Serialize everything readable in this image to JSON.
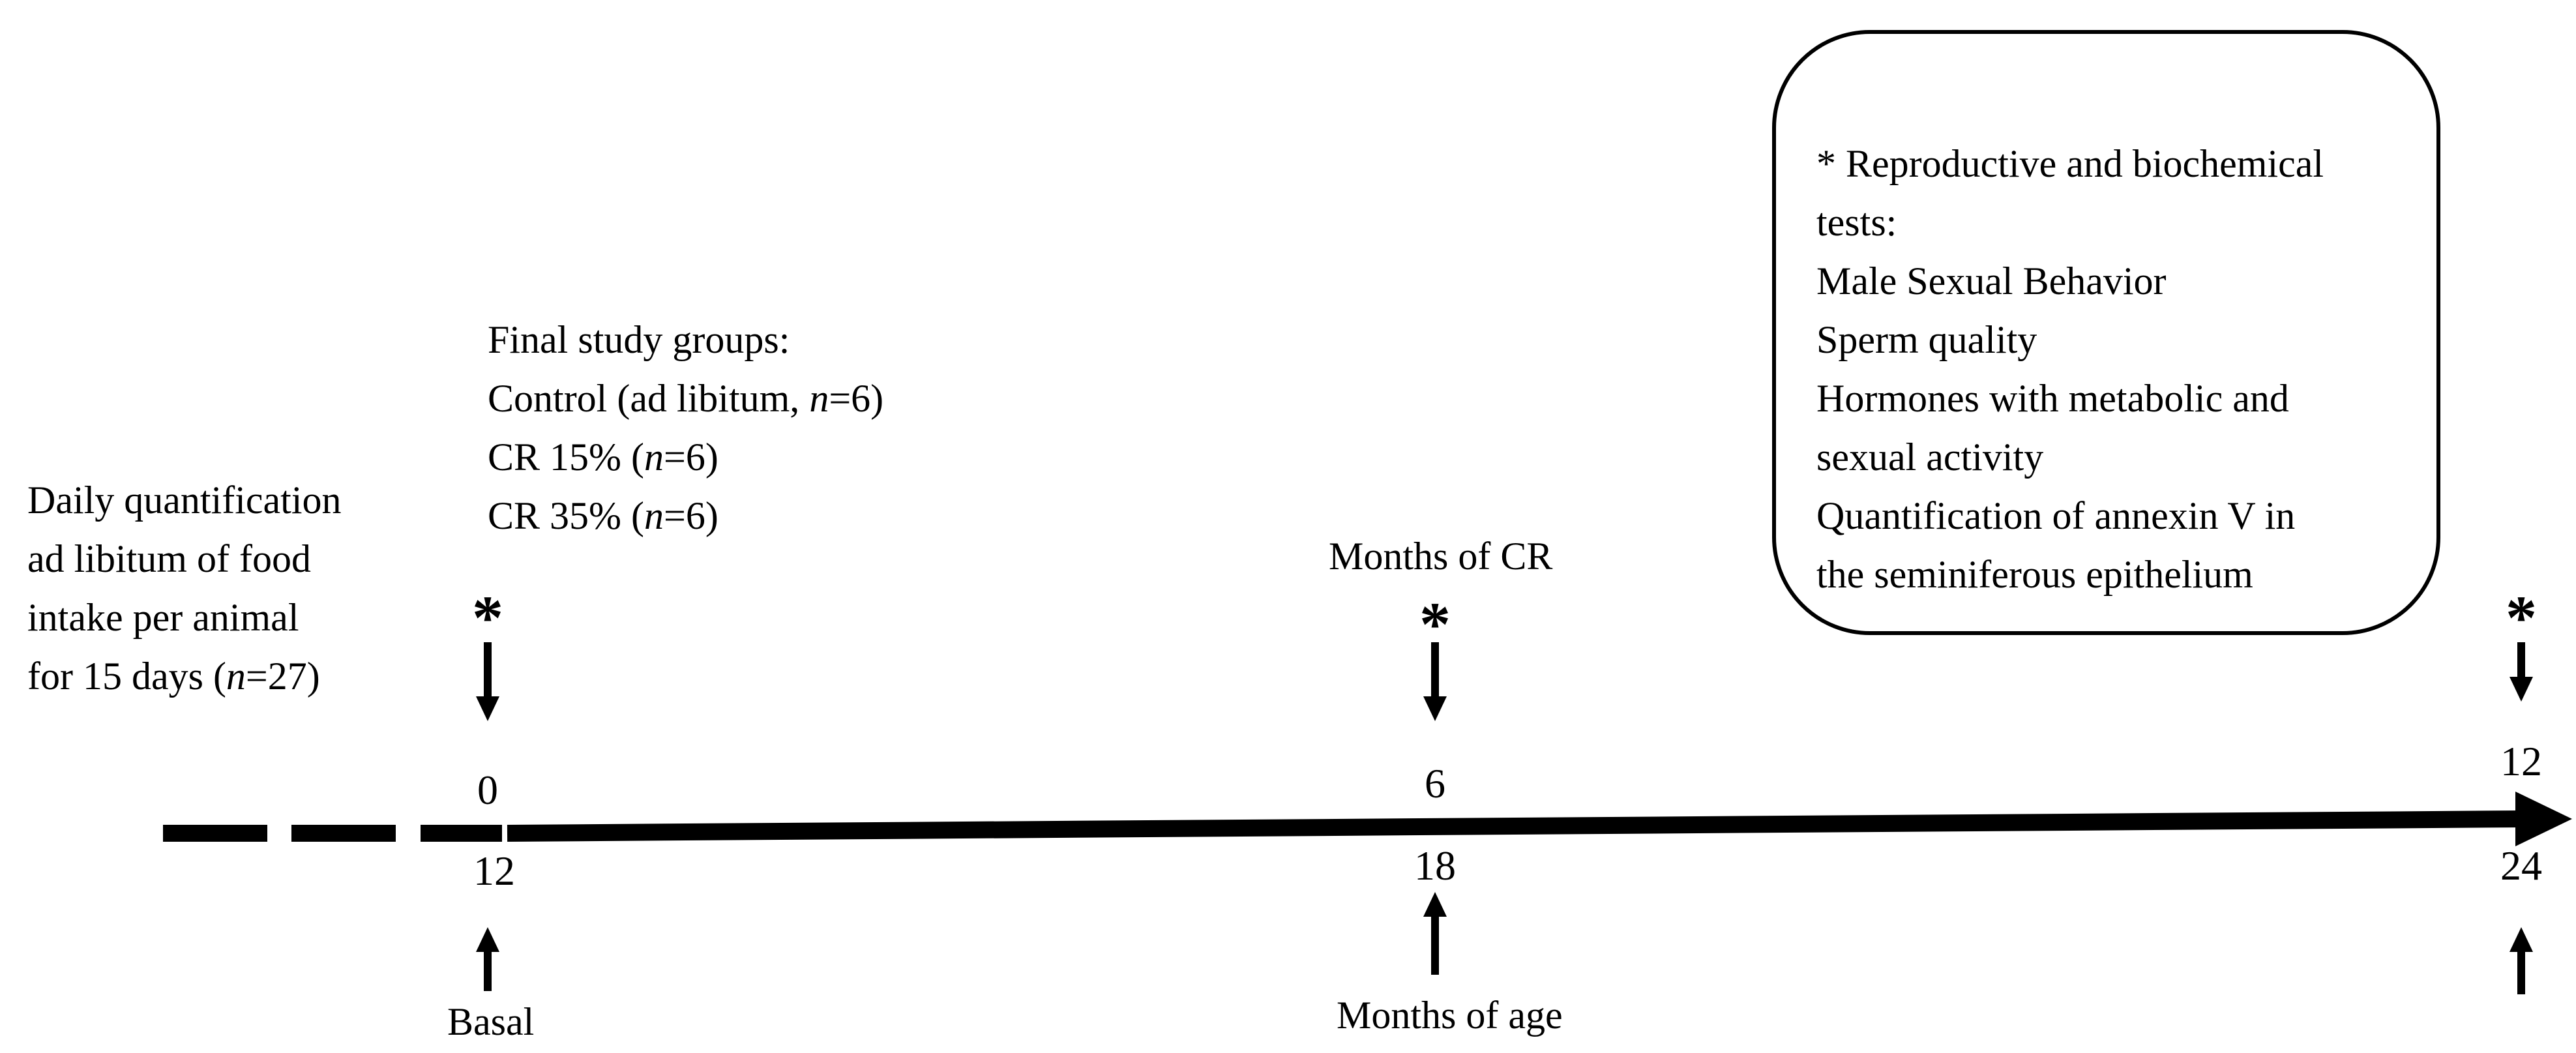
{
  "pre_period": {
    "lines": [
      "Daily quantification",
      "ad libitum of food",
      "intake per animal",
      "for 15 days  (",
      "n",
      "=27)"
    ]
  },
  "groups": {
    "title": "Final study groups:",
    "control_prefix": "Control (ad libitum, ",
    "control_n": "n",
    "control_suffix": "=6)",
    "cr15_prefix": "CR 15% (",
    "cr15_n": "n",
    "cr15_suffix": "=6)",
    "cr35_prefix": "CR 35% (",
    "cr35_n": "n",
    "cr35_suffix": "=6)"
  },
  "tests_box": {
    "lines": [
      "* Reproductive and biochemical",
      "tests:",
      "Male Sexual Behavior",
      "Sperm quality",
      "Hormones with metabolic and",
      "sexual activity",
      "Quantification of annexin V in",
      "the seminiferous epithelium"
    ]
  },
  "marker_symbol": "*",
  "timeline": {
    "top_label": "Months of CR",
    "bottom_label": "Months of age",
    "basal_label": "Basal",
    "points": [
      {
        "cr_month": "0",
        "age_month": "12"
      },
      {
        "cr_month": "6",
        "age_month": "18"
      },
      {
        "cr_month": "12",
        "age_month": "24"
      }
    ]
  }
}
